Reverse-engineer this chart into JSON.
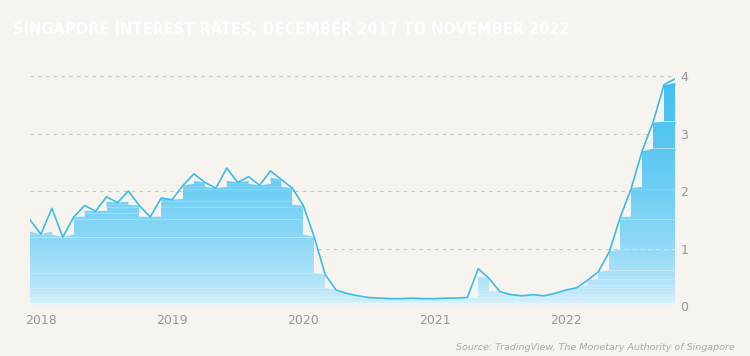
{
  "title": "SINGAPORE INTEREST RATES, DECEMBER 2017 TO NOVEMBER 2022",
  "title_bg_color": "#9e6b4a",
  "title_text_color": "#ffffff",
  "source_text": "Source: TradingView, The Monetary Authority of Singapore",
  "background_color": "#f7f3ef",
  "plot_bg_color": "#f7f3ef",
  "line_color": "#3bbde8",
  "fill_top_color": "#7fd4f0",
  "fill_bottom_color": "#e8f6fc",
  "grid_color": "#c8c8c8",
  "tick_label_color": "#999999",
  "ylim": [
    0,
    4.3
  ],
  "yticks": [
    0,
    1,
    2,
    3,
    4
  ],
  "x_labels": [
    "2018",
    "2019",
    "2020",
    "2021",
    "2022"
  ],
  "values": [
    1.5,
    1.25,
    1.7,
    1.2,
    1.55,
    1.75,
    1.65,
    1.9,
    1.8,
    2.0,
    1.75,
    1.55,
    1.88,
    1.85,
    2.1,
    2.3,
    2.15,
    2.05,
    2.4,
    2.15,
    2.25,
    2.1,
    2.35,
    2.2,
    2.05,
    1.75,
    1.2,
    0.55,
    0.28,
    0.22,
    0.18,
    0.15,
    0.14,
    0.13,
    0.13,
    0.14,
    0.13,
    0.13,
    0.14,
    0.14,
    0.15,
    0.65,
    0.48,
    0.25,
    0.2,
    0.18,
    0.2,
    0.18,
    0.22,
    0.28,
    0.32,
    0.45,
    0.6,
    0.95,
    1.55,
    2.05,
    2.7,
    3.2,
    3.85,
    3.95
  ]
}
